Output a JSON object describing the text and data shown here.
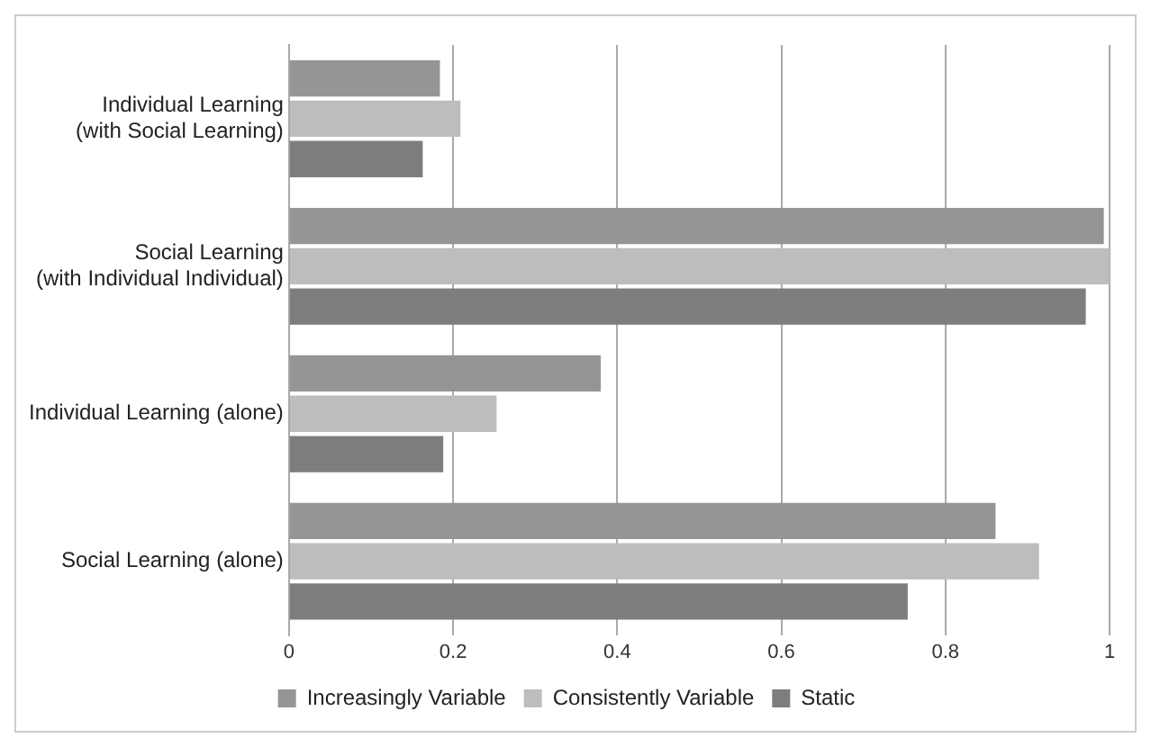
{
  "chart_data": {
    "type": "bar",
    "orientation": "horizontal",
    "categories": [
      "Individual Learning\n(with Social Learning)",
      "Social Learning\n(with Individual Individual)",
      "Individual Learning (alone)",
      "Social Learning (alone)"
    ],
    "series": [
      {
        "name": "Increasingly Variable",
        "color": "#959595",
        "values": [
          0.184,
          0.993,
          0.38,
          0.861
        ]
      },
      {
        "name": "Consistently Variable",
        "color": "#bdbdbf",
        "values": [
          0.209,
          1.0,
          0.253,
          0.914
        ]
      },
      {
        "name": "Static",
        "color": "#7d7d7f",
        "values": [
          0.163,
          0.971,
          0.188,
          0.754
        ]
      }
    ],
    "xlim": [
      0,
      1
    ],
    "xticks": [
      0,
      0.2,
      0.4,
      0.6,
      0.8,
      1
    ],
    "grid": "x",
    "legend": "bottom"
  }
}
